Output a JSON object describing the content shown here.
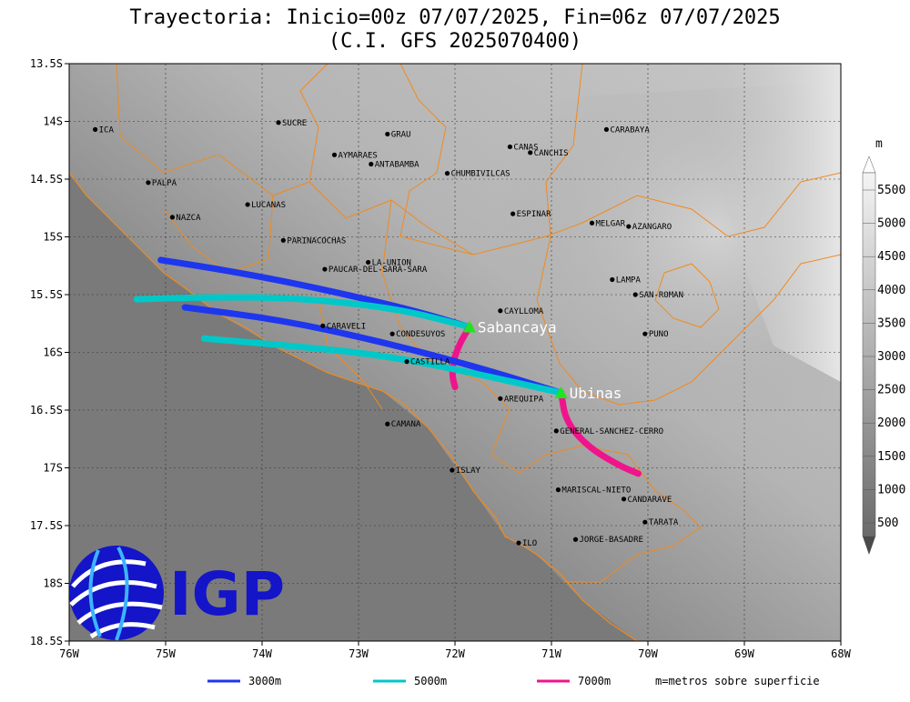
{
  "title": {
    "line1": "Trayectoria: Inicio=00z 07/07/2025, Fin=06z 07/07/2025",
    "line2": "(C.I. GFS 2025070400)"
  },
  "map": {
    "lon_range": [
      -76,
      -68
    ],
    "lat_range": [
      -18.5,
      -13.5
    ],
    "x_ticks": [
      {
        "lon": -76,
        "label": "76W"
      },
      {
        "lon": -75,
        "label": "75W"
      },
      {
        "lon": -74,
        "label": "74W"
      },
      {
        "lon": -73,
        "label": "73W"
      },
      {
        "lon": -72,
        "label": "72W"
      },
      {
        "lon": -71,
        "label": "71W"
      },
      {
        "lon": -70,
        "label": "70W"
      },
      {
        "lon": -69,
        "label": "69W"
      },
      {
        "lon": -68,
        "label": "68W"
      }
    ],
    "y_ticks": [
      {
        "lat": -13.5,
        "label": "13.5S"
      },
      {
        "lat": -14,
        "label": "14S"
      },
      {
        "lat": -14.5,
        "label": "14.5S"
      },
      {
        "lat": -15,
        "label": "15S"
      },
      {
        "lat": -15.5,
        "label": "15.5S"
      },
      {
        "lat": -16,
        "label": "16S"
      },
      {
        "lat": -16.5,
        "label": "16.5S"
      },
      {
        "lat": -17,
        "label": "17S"
      },
      {
        "lat": -17.5,
        "label": "17.5S"
      },
      {
        "lat": -18,
        "label": "18S"
      },
      {
        "lat": -18.5,
        "label": "18.5S"
      }
    ],
    "places": [
      {
        "name": "ICA",
        "lon": -75.73,
        "lat": -14.07
      },
      {
        "name": "SUCRE",
        "lon": -73.83,
        "lat": -14.01
      },
      {
        "name": "GRAU",
        "lon": -72.7,
        "lat": -14.11
      },
      {
        "name": "CANAS",
        "lon": -71.43,
        "lat": -14.22
      },
      {
        "name": "CANCHIS",
        "lon": -71.22,
        "lat": -14.27
      },
      {
        "name": "CARABAYA",
        "lon": -70.43,
        "lat": -14.07
      },
      {
        "name": "AYMARAES",
        "lon": -73.25,
        "lat": -14.29
      },
      {
        "name": "ANTABAMBA",
        "lon": -72.87,
        "lat": -14.37
      },
      {
        "name": "CHUMBIVILCAS",
        "lon": -72.08,
        "lat": -14.45
      },
      {
        "name": "PALPA",
        "lon": -75.18,
        "lat": -14.53
      },
      {
        "name": "LUCANAS",
        "lon": -74.15,
        "lat": -14.72
      },
      {
        "name": "NAZCA",
        "lon": -74.93,
        "lat": -14.83
      },
      {
        "name": "ESPINAR",
        "lon": -71.4,
        "lat": -14.8
      },
      {
        "name": "MELGAR",
        "lon": -70.58,
        "lat": -14.88
      },
      {
        "name": "AZANGARO",
        "lon": -70.2,
        "lat": -14.91
      },
      {
        "name": "PARINACOCHAS",
        "lon": -73.78,
        "lat": -15.03
      },
      {
        "name": "LA-UNION",
        "lon": -72.9,
        "lat": -15.22
      },
      {
        "name": "PAUCAR-DEL-SARA-SARA",
        "lon": -73.35,
        "lat": -15.28
      },
      {
        "name": "LAMPA",
        "lon": -70.37,
        "lat": -15.37
      },
      {
        "name": "SAN-ROMAN",
        "lon": -70.13,
        "lat": -15.5
      },
      {
        "name": "CAYLLOMA",
        "lon": -71.53,
        "lat": -15.64
      },
      {
        "name": "CARAVELI",
        "lon": -73.37,
        "lat": -15.77
      },
      {
        "name": "CONDESUYOS",
        "lon": -72.65,
        "lat": -15.84
      },
      {
        "name": "PUNO",
        "lon": -70.03,
        "lat": -15.84
      },
      {
        "name": "CASTILLA",
        "lon": -72.5,
        "lat": -16.08
      },
      {
        "name": "AREQUIPA",
        "lon": -71.53,
        "lat": -16.4
      },
      {
        "name": "GENERAL-SANCHEZ-CERRO",
        "lon": -70.95,
        "lat": -16.68
      },
      {
        "name": "CAMANA",
        "lon": -72.7,
        "lat": -16.62
      },
      {
        "name": "ISLAY",
        "lon": -72.03,
        "lat": -17.02
      },
      {
        "name": "MARISCAL-NIETO",
        "lon": -70.93,
        "lat": -17.19
      },
      {
        "name": "CANDARAVE",
        "lon": -70.25,
        "lat": -17.27
      },
      {
        "name": "TARATA",
        "lon": -70.03,
        "lat": -17.47
      },
      {
        "name": "JORGE-BASADRE",
        "lon": -70.75,
        "lat": -17.62
      },
      {
        "name": "ILO",
        "lon": -71.34,
        "lat": -17.65
      }
    ],
    "volcanoes": [
      {
        "name": "Sabancaya",
        "lon": -71.85,
        "lat": -15.78
      },
      {
        "name": "Ubinas",
        "lon": -70.9,
        "lat": -16.35
      }
    ],
    "trajectories": [
      {
        "level": "3000m",
        "color": "#1e36ee",
        "points": [
          [
            -71.85,
            -15.78
          ],
          [
            -72.5,
            -15.62
          ],
          [
            -73.5,
            -15.43
          ],
          [
            -74.3,
            -15.3
          ],
          [
            -75.05,
            -15.2
          ]
        ]
      },
      {
        "level": "5000m",
        "color": "#00c8c8",
        "points": [
          [
            -71.85,
            -15.78
          ],
          [
            -72.6,
            -15.62
          ],
          [
            -73.6,
            -15.53
          ],
          [
            -74.5,
            -15.52
          ],
          [
            -75.3,
            -15.54
          ]
        ]
      },
      {
        "level": "7000m",
        "color": "#f0148c",
        "points": [
          [
            -71.85,
            -15.78
          ],
          [
            -71.95,
            -15.92
          ],
          [
            -72.02,
            -16.08
          ],
          [
            -72.03,
            -16.2
          ],
          [
            -72.0,
            -16.3
          ]
        ]
      },
      {
        "level": "3000m",
        "color": "#1e36ee",
        "points": [
          [
            -70.9,
            -16.35
          ],
          [
            -71.8,
            -16.12
          ],
          [
            -72.8,
            -15.9
          ],
          [
            -73.8,
            -15.72
          ],
          [
            -74.8,
            -15.61
          ]
        ]
      },
      {
        "level": "5000m",
        "color": "#00c8c8",
        "points": [
          [
            -70.9,
            -16.35
          ],
          [
            -71.8,
            -16.18
          ],
          [
            -72.7,
            -16.03
          ],
          [
            -73.6,
            -15.95
          ],
          [
            -74.6,
            -15.88
          ]
        ]
      },
      {
        "level": "7000m",
        "color": "#f0148c",
        "points": [
          [
            -70.9,
            -16.35
          ],
          [
            -70.85,
            -16.6
          ],
          [
            -70.62,
            -16.82
          ],
          [
            -70.3,
            -16.98
          ],
          [
            -70.1,
            -17.05
          ]
        ]
      }
    ]
  },
  "colorbar": {
    "unit": "m",
    "ticks": [
      "500",
      "1000",
      "1500",
      "2000",
      "2500",
      "3000",
      "3500",
      "4000",
      "4500",
      "5000",
      "5500"
    ]
  },
  "legend": {
    "items": [
      {
        "label": "3000m",
        "color": "#1e36ee"
      },
      {
        "label": "5000m",
        "color": "#00c8c8"
      },
      {
        "label": "7000m",
        "color": "#f0148c"
      }
    ],
    "note": "m=metros sobre superficie"
  },
  "logo": {
    "text": "IGP",
    "color": "#1414c8"
  }
}
